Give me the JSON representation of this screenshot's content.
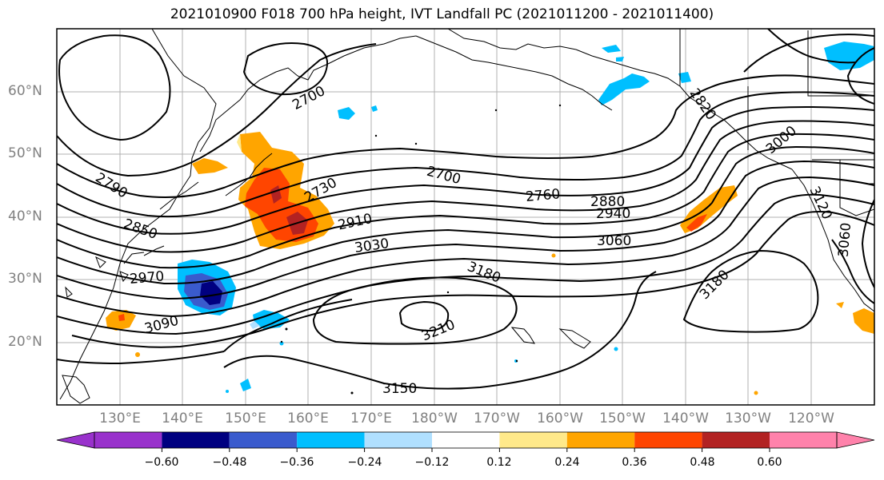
{
  "title": "2021010900 F018 700 hPa height, IVT Landfall PC (2021011200 - 2021011400)",
  "lat_labels": [
    "60°N",
    "50°N",
    "40°N",
    "30°N",
    "20°N"
  ],
  "lon_labels": [
    "130°E",
    "140°E",
    "150°E",
    "160°E",
    "170°E",
    "180°W",
    "170°W",
    "160°W",
    "150°W",
    "140°W",
    "130°W",
    "120°W"
  ],
  "contour_labels": [
    "2700",
    "2790",
    "2730",
    "2700",
    "2760",
    "2880",
    "2940",
    "2910",
    "2850",
    "3030",
    "3060",
    "2970",
    "3090",
    "3180",
    "3210",
    "3150",
    "3180",
    "2820",
    "3000",
    "3120",
    "3060"
  ],
  "colorbar": {
    "ticks": [
      "−0.60",
      "−0.48",
      "−0.36",
      "−0.24",
      "−0.12",
      "0.12",
      "0.24",
      "0.36",
      "0.48",
      "0.60"
    ],
    "colors": [
      "#9932cc",
      "#000080",
      "#3a5bcd",
      "#00bfff",
      "#b0e0ff",
      "#ffffff",
      "#ffe98a",
      "#ffa500",
      "#ff4500",
      "#b22222",
      "#ff82ab"
    ]
  },
  "fill_colors": {
    "orange": "#ffa500",
    "red": "#ff4500",
    "darkred": "#b22222",
    "yellow": "#ffe98a",
    "cyan": "#00bfff",
    "royal": "#3a5bcd",
    "navy": "#000080",
    "lightblue": "#b0e0ff"
  }
}
